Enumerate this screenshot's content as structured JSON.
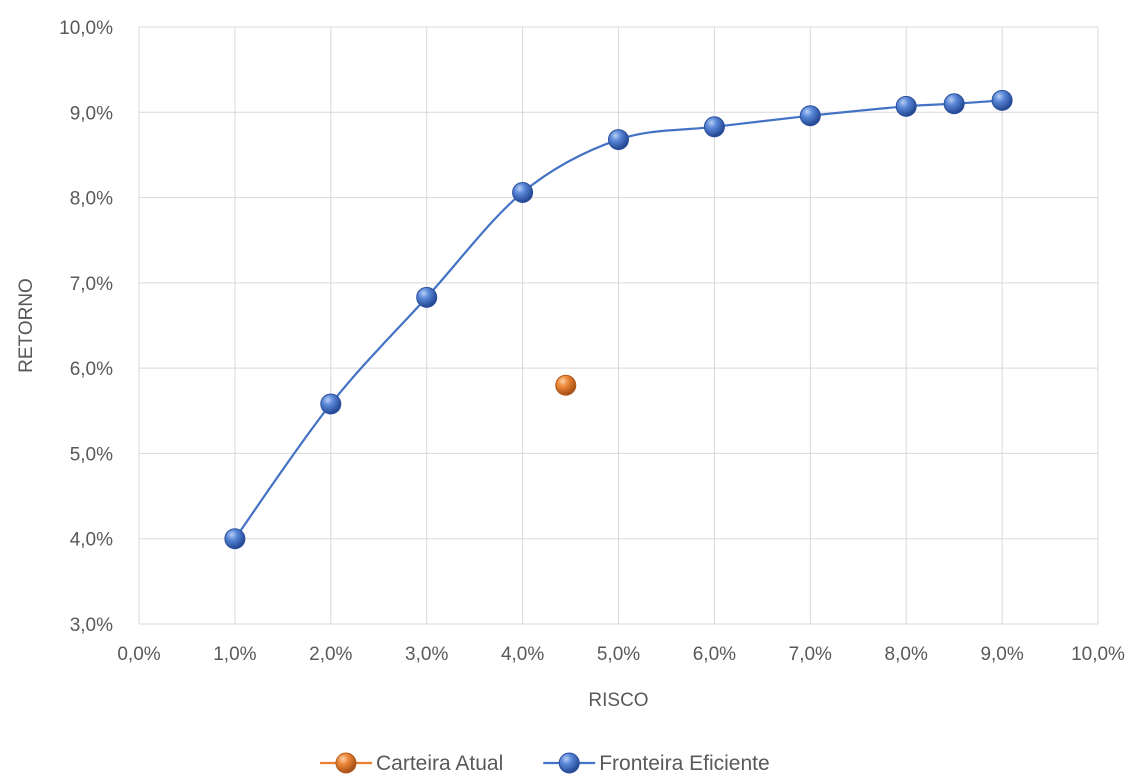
{
  "chart_data": {
    "type": "scatter",
    "title": "",
    "xlabel": "RISCO",
    "ylabel": "RETORNO",
    "xlim": [
      0,
      10
    ],
    "ylim": [
      3,
      10
    ],
    "x_ticks": [
      "0,0%",
      "1,0%",
      "2,0%",
      "3,0%",
      "4,0%",
      "5,0%",
      "6,0%",
      "7,0%",
      "8,0%",
      "9,0%",
      "10,0%"
    ],
    "y_ticks": [
      "3,0%",
      "4,0%",
      "5,0%",
      "6,0%",
      "7,0%",
      "8,0%",
      "9,0%",
      "10,0%"
    ],
    "grid": true,
    "legend_position": "bottom",
    "series": [
      {
        "name": "Carteira Atual",
        "color": "#ED7D31",
        "line": false,
        "points": [
          {
            "x": 4.45,
            "y": 5.8
          }
        ]
      },
      {
        "name": "Fronteira Eficiente",
        "color": "#4472C4",
        "line": true,
        "smooth": true,
        "points": [
          {
            "x": 1.0,
            "y": 4.0
          },
          {
            "x": 2.0,
            "y": 5.58
          },
          {
            "x": 3.0,
            "y": 6.83
          },
          {
            "x": 4.0,
            "y": 8.06
          },
          {
            "x": 5.0,
            "y": 8.68
          },
          {
            "x": 6.0,
            "y": 8.83
          },
          {
            "x": 7.0,
            "y": 8.96
          },
          {
            "x": 8.0,
            "y": 9.07
          },
          {
            "x": 8.5,
            "y": 9.1
          },
          {
            "x": 9.0,
            "y": 9.14
          }
        ]
      }
    ]
  }
}
